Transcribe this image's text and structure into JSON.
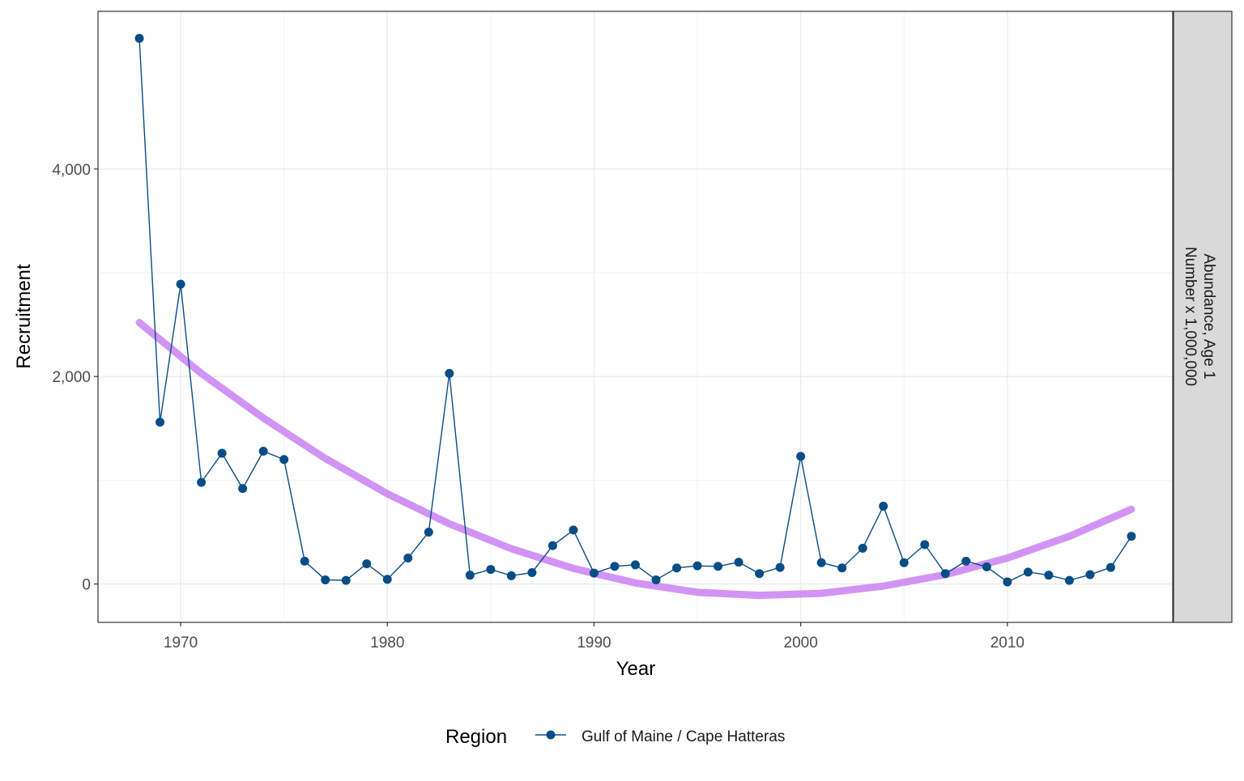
{
  "chart_data": {
    "type": "line",
    "xlabel": "Year",
    "ylabel": "Recruitment",
    "facet_label": [
      "Abundance, Age 1",
      "Number x 1,000,000"
    ],
    "xlim": [
      1966,
      2018
    ],
    "ylim": [
      -370,
      5520
    ],
    "x_ticks": [
      1970,
      1980,
      1990,
      2000,
      2010
    ],
    "x_tick_labels": [
      "1970",
      "1980",
      "1990",
      "2000",
      "2010"
    ],
    "y_ticks": [
      0,
      2000,
      4000
    ],
    "y_tick_labels": [
      "0",
      "2,000",
      "4,000"
    ],
    "grid": true,
    "legend": {
      "title": "Region",
      "position": "bottom"
    },
    "colors": {
      "series": "#084d86",
      "trend": "#d08ef3"
    },
    "series": [
      {
        "name": "Gulf of Maine / Cape Hatteras",
        "x": [
          1968,
          1969,
          1970,
          1971,
          1972,
          1973,
          1974,
          1975,
          1976,
          1977,
          1978,
          1979,
          1980,
          1981,
          1982,
          1983,
          1984,
          1985,
          1986,
          1987,
          1988,
          1989,
          1990,
          1991,
          1992,
          1993,
          1994,
          1995,
          1996,
          1997,
          1998,
          1999,
          2000,
          2001,
          2002,
          2003,
          2004,
          2005,
          2006,
          2007,
          2008,
          2009,
          2010,
          2011,
          2012,
          2013,
          2014,
          2015,
          2016
        ],
        "values": [
          5260,
          1560,
          2890,
          980,
          1260,
          920,
          1280,
          1200,
          220,
          40,
          35,
          195,
          45,
          250,
          500,
          2030,
          85,
          140,
          80,
          110,
          370,
          520,
          105,
          170,
          185,
          40,
          155,
          175,
          170,
          210,
          100,
          160,
          1230,
          205,
          155,
          345,
          750,
          205,
          380,
          100,
          220,
          165,
          20,
          115,
          85,
          35,
          90,
          160,
          460
        ]
      }
    ],
    "trend": {
      "type": "quadratic fit",
      "x": [
        1968,
        1971,
        1974,
        1977,
        1980,
        1983,
        1986,
        1989,
        1992,
        1995,
        1998,
        2001,
        2004,
        2007,
        2010,
        2013,
        2016
      ],
      "values": [
        2520,
        2030,
        1600,
        1210,
        870,
        580,
        340,
        150,
        10,
        -80,
        -110,
        -90,
        -20,
        90,
        250,
        460,
        720
      ]
    }
  }
}
